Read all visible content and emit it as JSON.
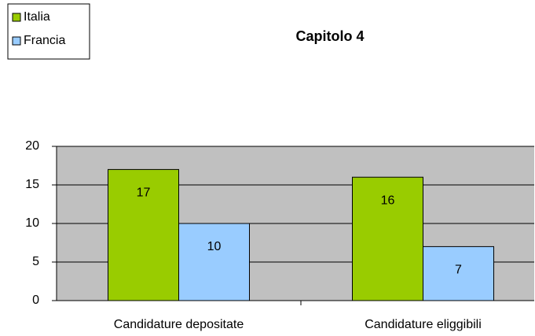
{
  "chart_data": {
    "type": "bar",
    "title": "Capitolo 4",
    "categories": [
      "Candidature depositate",
      "Candidature eliggibili"
    ],
    "series": [
      {
        "name": "Italia",
        "color": "#99cc00",
        "values": [
          17,
          16
        ]
      },
      {
        "name": "Francia",
        "color": "#99ccff",
        "values": [
          10,
          7
        ]
      }
    ],
    "ylim": [
      0,
      20
    ],
    "yticks": [
      0,
      5,
      10,
      15,
      20
    ],
    "grid": true,
    "legend": "top-left"
  }
}
